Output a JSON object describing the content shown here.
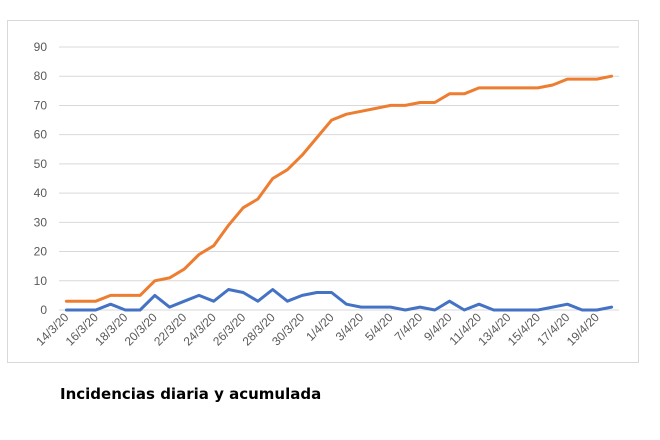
{
  "caption": "Incidencias diaria y acumulada",
  "chart_data": {
    "type": "line",
    "title": "",
    "xlabel": "",
    "ylabel": "",
    "ylim": [
      0,
      90
    ],
    "yticks": [
      0,
      10,
      20,
      30,
      40,
      50,
      60,
      70,
      80,
      90
    ],
    "grid": true,
    "legend": "none",
    "x": [
      "14/3/20",
      "15/3/20",
      "16/3/20",
      "17/3/20",
      "18/3/20",
      "19/3/20",
      "20/3/20",
      "21/3/20",
      "22/3/20",
      "23/3/20",
      "24/3/20",
      "25/3/20",
      "26/3/20",
      "27/3/20",
      "28/3/20",
      "29/3/20",
      "30/3/20",
      "31/3/20",
      "1/4/20",
      "2/4/20",
      "3/4/20",
      "4/4/20",
      "5/4/20",
      "6/4/20",
      "7/4/20",
      "8/4/20",
      "9/4/20",
      "10/4/20",
      "11/4/20",
      "12/4/20",
      "13/4/20",
      "14/4/20",
      "15/4/20",
      "16/4/20",
      "17/4/20",
      "18/4/20",
      "19/4/20",
      "20/4/20"
    ],
    "xtick_labels": [
      "14/3/20",
      "16/3/20",
      "18/3/20",
      "20/3/20",
      "22/3/20",
      "24/3/20",
      "26/3/20",
      "28/3/20",
      "30/3/20",
      "1/4/20",
      "3/4/20",
      "5/4/20",
      "7/4/20",
      "9/4/20",
      "11/4/20",
      "13/4/20",
      "15/4/20",
      "17/4/20",
      "19/4/20"
    ],
    "series": [
      {
        "color": "#4472c4",
        "values": [
          0,
          0,
          0,
          2,
          0,
          0,
          5,
          1,
          3,
          5,
          3,
          7,
          6,
          3,
          7,
          3,
          5,
          6,
          6,
          2,
          1,
          1,
          1,
          0,
          1,
          0,
          3,
          0,
          2,
          0,
          0,
          0,
          0,
          1,
          2,
          0,
          0,
          1
        ]
      },
      {
        "color": "#ed7d31",
        "values": [
          3,
          3,
          3,
          5,
          5,
          5,
          10,
          11,
          14,
          19,
          22,
          29,
          35,
          38,
          45,
          48,
          53,
          59,
          65,
          67,
          68,
          69,
          70,
          70,
          71,
          71,
          74,
          74,
          76,
          76,
          76,
          76,
          76,
          77,
          79,
          79,
          79,
          80
        ]
      }
    ]
  }
}
